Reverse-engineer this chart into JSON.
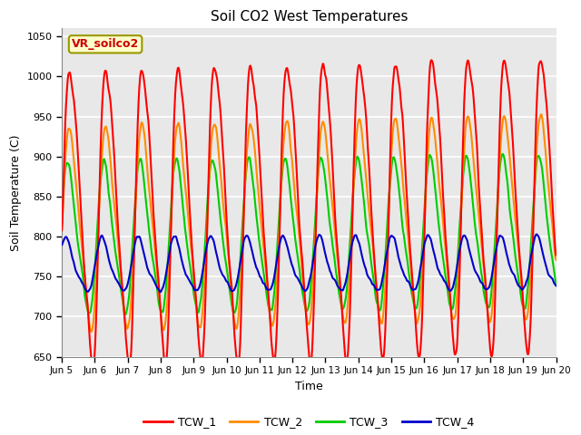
{
  "title": "Soil CO2 West Temperatures",
  "xlabel": "Time",
  "ylabel": "Soil Temperature (C)",
  "ylim": [
    650,
    1060
  ],
  "xlim": [
    0,
    15
  ],
  "xtick_labels": [
    "Jun 5",
    "Jun 6",
    "Jun 7",
    "Jun 8",
    "Jun 9",
    "Jun 10",
    "Jun 11",
    "Jun 12",
    "Jun 13",
    "Jun 14",
    "Jun 15",
    "Jun 16",
    "Jun 17",
    "Jun 18",
    "Jun 19",
    "Jun 20"
  ],
  "xtick_positions": [
    0,
    1,
    2,
    3,
    4,
    5,
    6,
    7,
    8,
    9,
    10,
    11,
    12,
    13,
    14,
    15
  ],
  "ytick_labels": [
    "650",
    "700",
    "750",
    "800",
    "850",
    "900",
    "950",
    "1000",
    "1050"
  ],
  "ytick_positions": [
    650,
    700,
    750,
    800,
    850,
    900,
    950,
    1000,
    1050
  ],
  "series": {
    "TCW_1": {
      "color": "#ff0000",
      "linewidth": 1.5
    },
    "TCW_2": {
      "color": "#ff8c00",
      "linewidth": 1.5
    },
    "TCW_3": {
      "color": "#00cc00",
      "linewidth": 1.5
    },
    "TCW_4": {
      "color": "#0000cc",
      "linewidth": 1.5
    }
  },
  "label_box": {
    "text": "VR_soilco2",
    "facecolor": "#ffffcc",
    "edgecolor": "#999900",
    "textcolor": "#cc0000",
    "fontsize": 9,
    "fontweight": "bold"
  },
  "background_color": "#e8e8e8",
  "grid_color": "#ffffff",
  "figure_background": "#ffffff",
  "legend_labels": [
    "TCW_1",
    "TCW_2",
    "TCW_3",
    "TCW_4"
  ]
}
